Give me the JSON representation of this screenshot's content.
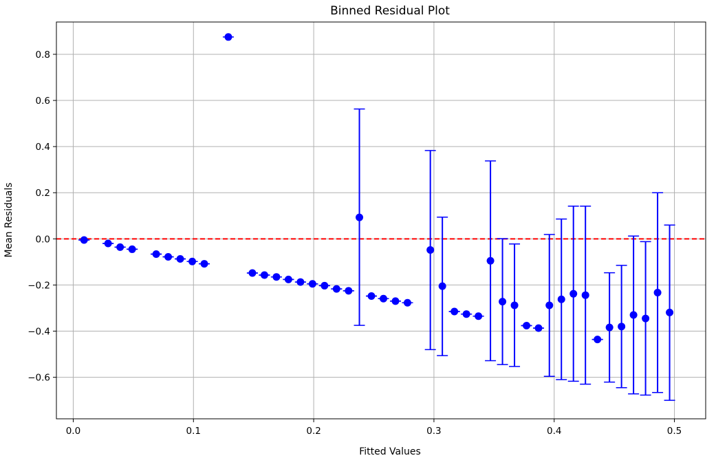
{
  "chart_data": {
    "type": "scatter",
    "title": "Binned Residual Plot",
    "xlabel": "Fitted Values",
    "ylabel": "Mean Residuals",
    "xlim": [
      -0.014,
      0.526
    ],
    "ylim": [
      -0.78,
      0.94
    ],
    "x_ticks": [
      0.0,
      0.1,
      0.2,
      0.3,
      0.4,
      0.5
    ],
    "x_tick_labels": [
      "0.0",
      "0.1",
      "0.2",
      "0.3",
      "0.4",
      "0.5"
    ],
    "y_ticks": [
      -0.6,
      -0.4,
      -0.2,
      0.0,
      0.2,
      0.4,
      0.6,
      0.8
    ],
    "y_tick_labels": [
      "−0.6",
      "−0.4",
      "−0.2",
      "0.0",
      "0.2",
      "0.4",
      "0.6",
      "0.8"
    ],
    "grid": true,
    "reference_line": {
      "y": 0.0,
      "color": "#ff0000",
      "style": "dashed"
    },
    "series": [
      {
        "color": "#0000ff",
        "points": [
          {
            "x": 0.009,
            "y": -0.005,
            "lo": -0.005,
            "hi": -0.005
          },
          {
            "x": 0.029,
            "y": -0.02,
            "lo": -0.02,
            "hi": -0.02
          },
          {
            "x": 0.039,
            "y": -0.036,
            "lo": -0.036,
            "hi": -0.036
          },
          {
            "x": 0.049,
            "y": -0.045,
            "lo": -0.045,
            "hi": -0.045
          },
          {
            "x": 0.069,
            "y": -0.066,
            "lo": -0.066,
            "hi": -0.066
          },
          {
            "x": 0.079,
            "y": -0.078,
            "lo": -0.078,
            "hi": -0.078
          },
          {
            "x": 0.089,
            "y": -0.087,
            "lo": -0.087,
            "hi": -0.087
          },
          {
            "x": 0.099,
            "y": -0.098,
            "lo": -0.098,
            "hi": -0.098
          },
          {
            "x": 0.109,
            "y": -0.108,
            "lo": -0.108,
            "hi": -0.108
          },
          {
            "x": 0.129,
            "y": 0.875,
            "lo": 0.875,
            "hi": 0.875
          },
          {
            "x": 0.149,
            "y": -0.148,
            "lo": -0.148,
            "hi": -0.148
          },
          {
            "x": 0.159,
            "y": -0.157,
            "lo": -0.157,
            "hi": -0.157
          },
          {
            "x": 0.169,
            "y": -0.165,
            "lo": -0.165,
            "hi": -0.165
          },
          {
            "x": 0.179,
            "y": -0.176,
            "lo": -0.176,
            "hi": -0.176
          },
          {
            "x": 0.189,
            "y": -0.187,
            "lo": -0.187,
            "hi": -0.187
          },
          {
            "x": 0.199,
            "y": -0.195,
            "lo": -0.195,
            "hi": -0.195
          },
          {
            "x": 0.209,
            "y": -0.203,
            "lo": -0.203,
            "hi": -0.203
          },
          {
            "x": 0.219,
            "y": -0.217,
            "lo": -0.217,
            "hi": -0.217
          },
          {
            "x": 0.229,
            "y": -0.225,
            "lo": -0.225,
            "hi": -0.225
          },
          {
            "x": 0.238,
            "y": 0.093,
            "lo": -0.375,
            "hi": 0.563
          },
          {
            "x": 0.248,
            "y": -0.248,
            "lo": -0.248,
            "hi": -0.248
          },
          {
            "x": 0.258,
            "y": -0.259,
            "lo": -0.259,
            "hi": -0.259
          },
          {
            "x": 0.268,
            "y": -0.27,
            "lo": -0.27,
            "hi": -0.27
          },
          {
            "x": 0.278,
            "y": -0.277,
            "lo": -0.277,
            "hi": -0.277
          },
          {
            "x": 0.297,
            "y": -0.048,
            "lo": -0.48,
            "hi": 0.383
          },
          {
            "x": 0.307,
            "y": -0.205,
            "lo": -0.506,
            "hi": 0.094
          },
          {
            "x": 0.317,
            "y": -0.315,
            "lo": -0.315,
            "hi": -0.315
          },
          {
            "x": 0.327,
            "y": -0.326,
            "lo": -0.326,
            "hi": -0.326
          },
          {
            "x": 0.337,
            "y": -0.335,
            "lo": -0.335,
            "hi": -0.335
          },
          {
            "x": 0.347,
            "y": -0.095,
            "lo": -0.528,
            "hi": 0.338
          },
          {
            "x": 0.357,
            "y": -0.272,
            "lo": -0.545,
            "hi": 0.001
          },
          {
            "x": 0.367,
            "y": -0.288,
            "lo": -0.553,
            "hi": -0.022
          },
          {
            "x": 0.377,
            "y": -0.376,
            "lo": -0.376,
            "hi": -0.376
          },
          {
            "x": 0.387,
            "y": -0.387,
            "lo": -0.387,
            "hi": -0.387
          },
          {
            "x": 0.396,
            "y": -0.288,
            "lo": -0.596,
            "hi": 0.019
          },
          {
            "x": 0.406,
            "y": -0.262,
            "lo": -0.61,
            "hi": 0.086
          },
          {
            "x": 0.416,
            "y": -0.238,
            "lo": -0.617,
            "hi": 0.142
          },
          {
            "x": 0.426,
            "y": -0.244,
            "lo": -0.63,
            "hi": 0.142
          },
          {
            "x": 0.436,
            "y": -0.436,
            "lo": -0.436,
            "hi": -0.436
          },
          {
            "x": 0.446,
            "y": -0.384,
            "lo": -0.621,
            "hi": -0.147
          },
          {
            "x": 0.456,
            "y": -0.38,
            "lo": -0.645,
            "hi": -0.115
          },
          {
            "x": 0.466,
            "y": -0.33,
            "lo": -0.672,
            "hi": 0.012
          },
          {
            "x": 0.476,
            "y": -0.345,
            "lo": -0.677,
            "hi": -0.012
          },
          {
            "x": 0.486,
            "y": -0.233,
            "lo": -0.666,
            "hi": 0.2
          },
          {
            "x": 0.496,
            "y": -0.319,
            "lo": -0.7,
            "hi": 0.06
          }
        ]
      }
    ]
  }
}
